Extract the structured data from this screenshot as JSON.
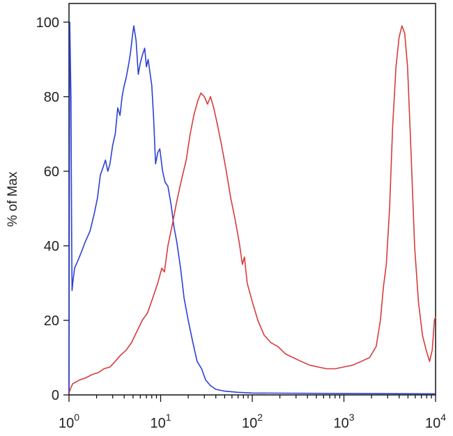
{
  "chart_data": {
    "type": "line",
    "title": "",
    "xlabel": "",
    "ylabel": "% of Max",
    "x_scale": "log",
    "xlim": [
      1,
      10000
    ],
    "ylim": [
      0,
      105
    ],
    "grid": false,
    "legend": "none",
    "y_ticks": [
      0,
      20,
      40,
      60,
      80,
      100
    ],
    "y_tick_labels": [
      "0",
      "20",
      "40",
      "60",
      "80",
      "100"
    ],
    "x_ticks": [
      1,
      10,
      100,
      1000,
      10000
    ],
    "x_tick_labels": [
      {
        "base": "10",
        "exp": "0"
      },
      {
        "base": "10",
        "exp": "1"
      },
      {
        "base": "10",
        "exp": "2"
      },
      {
        "base": "10",
        "exp": "3"
      },
      {
        "base": "10",
        "exp": "4"
      }
    ],
    "series": [
      {
        "color": "#2b3fd6",
        "points": [
          [
            1.0,
            0.5
          ],
          [
            1.02,
            100
          ],
          [
            1.05,
            80
          ],
          [
            1.07,
            40
          ],
          [
            1.08,
            28
          ],
          [
            1.1,
            30
          ],
          [
            1.15,
            34
          ],
          [
            1.25,
            36
          ],
          [
            1.35,
            38
          ],
          [
            1.5,
            41
          ],
          [
            1.7,
            44
          ],
          [
            1.9,
            49
          ],
          [
            2.05,
            53
          ],
          [
            2.2,
            59
          ],
          [
            2.35,
            61
          ],
          [
            2.5,
            63
          ],
          [
            2.65,
            60
          ],
          [
            2.8,
            62
          ],
          [
            3.0,
            67
          ],
          [
            3.2,
            70
          ],
          [
            3.4,
            77
          ],
          [
            3.6,
            75
          ],
          [
            3.8,
            80
          ],
          [
            4.0,
            83
          ],
          [
            4.2,
            85
          ],
          [
            4.5,
            89
          ],
          [
            4.7,
            92
          ],
          [
            4.9,
            96
          ],
          [
            5.1,
            99
          ],
          [
            5.4,
            95
          ],
          [
            5.7,
            86
          ],
          [
            6.0,
            89
          ],
          [
            6.3,
            91
          ],
          [
            6.7,
            93
          ],
          [
            7.0,
            88
          ],
          [
            7.3,
            90
          ],
          [
            7.6,
            87
          ],
          [
            8.0,
            83
          ],
          [
            8.4,
            74
          ],
          [
            8.8,
            62
          ],
          [
            9.3,
            65
          ],
          [
            9.8,
            66
          ],
          [
            10.5,
            60
          ],
          [
            11.2,
            57
          ],
          [
            12.0,
            56
          ],
          [
            13.0,
            51
          ],
          [
            14.0,
            45
          ],
          [
            15.0,
            41
          ],
          [
            16.5,
            34
          ],
          [
            18.0,
            26
          ],
          [
            20.0,
            20
          ],
          [
            22.5,
            14
          ],
          [
            25.0,
            9
          ],
          [
            28.0,
            7
          ],
          [
            31.0,
            4
          ],
          [
            35.0,
            2.5
          ],
          [
            40.0,
            1.5
          ],
          [
            50.0,
            1.0
          ],
          [
            70.0,
            0.7
          ],
          [
            100.0,
            0.5
          ],
          [
            1000.0,
            0.4
          ],
          [
            10000.0,
            0.3
          ]
        ]
      },
      {
        "color": "#d83a3a",
        "points": [
          [
            1.0,
            0.5
          ],
          [
            1.05,
            2
          ],
          [
            1.1,
            3
          ],
          [
            1.3,
            4
          ],
          [
            1.5,
            4.5
          ],
          [
            1.8,
            5.5
          ],
          [
            2.1,
            6
          ],
          [
            2.4,
            7
          ],
          [
            2.8,
            7.5
          ],
          [
            3.2,
            9
          ],
          [
            3.6,
            10.5
          ],
          [
            4.2,
            12
          ],
          [
            4.8,
            14
          ],
          [
            5.5,
            17
          ],
          [
            6.3,
            20
          ],
          [
            7.2,
            22
          ],
          [
            8.2,
            26
          ],
          [
            9.3,
            30
          ],
          [
            10.3,
            34
          ],
          [
            11.0,
            33
          ],
          [
            12.0,
            40
          ],
          [
            13.5,
            46
          ],
          [
            15.0,
            52
          ],
          [
            17.0,
            58
          ],
          [
            19.0,
            63
          ],
          [
            21.0,
            70
          ],
          [
            23.0,
            75
          ],
          [
            25.5,
            79
          ],
          [
            27.5,
            81
          ],
          [
            30.0,
            80
          ],
          [
            32.5,
            78
          ],
          [
            35.0,
            80
          ],
          [
            38.0,
            77
          ],
          [
            42.0,
            72
          ],
          [
            47.0,
            66
          ],
          [
            52.0,
            60
          ],
          [
            58.0,
            53
          ],
          [
            65.0,
            47
          ],
          [
            72.0,
            41
          ],
          [
            78.0,
            35
          ],
          [
            82.0,
            37
          ],
          [
            88.0,
            30
          ],
          [
            100.0,
            25
          ],
          [
            115.0,
            20
          ],
          [
            135.0,
            16
          ],
          [
            160.0,
            14
          ],
          [
            190.0,
            13
          ],
          [
            230.0,
            11
          ],
          [
            280.0,
            10
          ],
          [
            340.0,
            9
          ],
          [
            420.0,
            8
          ],
          [
            520.0,
            7.5
          ],
          [
            650.0,
            7
          ],
          [
            800.0,
            7
          ],
          [
            1000.0,
            7.5
          ],
          [
            1250.0,
            8
          ],
          [
            1550.0,
            9
          ],
          [
            1900.0,
            10
          ],
          [
            2250.0,
            13
          ],
          [
            2500.0,
            20
          ],
          [
            2700.0,
            29
          ],
          [
            2900.0,
            35
          ],
          [
            3150.0,
            50
          ],
          [
            3400.0,
            72
          ],
          [
            3700.0,
            88
          ],
          [
            4000.0,
            96
          ],
          [
            4300.0,
            99
          ],
          [
            4600.0,
            97
          ],
          [
            4950.0,
            88
          ],
          [
            5400.0,
            65
          ],
          [
            5900.0,
            40
          ],
          [
            6500.0,
            25
          ],
          [
            7200.0,
            16
          ],
          [
            7900.0,
            12
          ],
          [
            8600.0,
            9
          ],
          [
            9200.0,
            12
          ],
          [
            9700.0,
            20
          ],
          [
            10000.0,
            21
          ]
        ]
      }
    ]
  }
}
